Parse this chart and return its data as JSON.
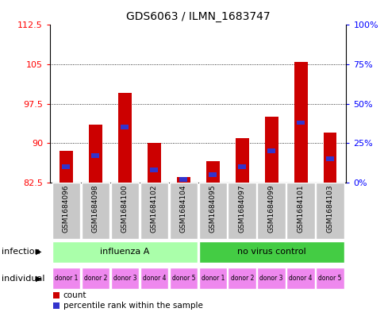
{
  "title": "GDS6063 / ILMN_1683747",
  "samples": [
    "GSM1684096",
    "GSM1684098",
    "GSM1684100",
    "GSM1684102",
    "GSM1684104",
    "GSM1684095",
    "GSM1684097",
    "GSM1684099",
    "GSM1684101",
    "GSM1684103"
  ],
  "count_values": [
    88.5,
    93.5,
    99.5,
    90.0,
    83.5,
    86.5,
    91.0,
    95.0,
    105.5,
    92.0
  ],
  "percentile_values": [
    10,
    17,
    35,
    8,
    2,
    5,
    10,
    20,
    38,
    15
  ],
  "ymin": 82.5,
  "ymax": 112.5,
  "yticks": [
    82.5,
    90.0,
    97.5,
    105.0,
    112.5
  ],
  "right_yticks": [
    0,
    25,
    50,
    75,
    100
  ],
  "bar_color": "#cc0000",
  "blue_color": "#3333cc",
  "infection_groups": [
    {
      "label": "influenza A",
      "start": 0,
      "end": 5,
      "color": "#aaffaa"
    },
    {
      "label": "no virus control",
      "start": 5,
      "end": 10,
      "color": "#44cc44"
    }
  ],
  "individual_labels": [
    "donor 1",
    "donor 2",
    "donor 3",
    "donor 4",
    "donor 5",
    "donor 1",
    "donor 2",
    "donor 3",
    "donor 4",
    "donor 5"
  ],
  "individual_color": "#ee88ee",
  "sample_bg_color": "#c8c8c8",
  "infection_label": "infection",
  "individual_label": "individual",
  "legend_count": "count",
  "legend_percentile": "percentile rank within the sample",
  "bar_width": 0.45
}
